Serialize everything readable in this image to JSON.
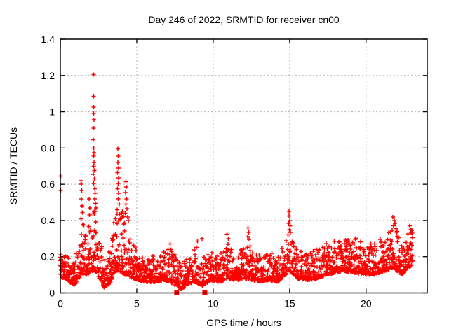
{
  "page": {
    "background": "#ffffff"
  },
  "chart_data": {
    "type": "scatter",
    "title": "Day 246 of 2022, SRMTID for receiver cn00",
    "xlabel": "GPS time / hours",
    "ylabel": "SRMTID / TECUs",
    "xlim": [
      0,
      24
    ],
    "ylim": [
      0,
      1.4
    ],
    "xticks": {
      "values": [
        0,
        5,
        10,
        15,
        20
      ],
      "labels": [
        "0",
        "5",
        "10",
        "15",
        "20"
      ]
    },
    "yticks": {
      "values": [
        0,
        0.2,
        0.4,
        0.6,
        0.8,
        1.0,
        1.2,
        1.4
      ],
      "labels": [
        "0",
        "0.2",
        "0.4",
        "0.6",
        "0.8",
        "1",
        "1.2",
        "1.4"
      ]
    },
    "grid": {
      "show": true,
      "color": "#b3b3b3",
      "dash": "2 3",
      "width": 1
    },
    "border_color": "#000000",
    "text_color": "#000000",
    "legend": "none",
    "marker": {
      "type": "plus",
      "half_size": 3,
      "stroke_width": 1.5,
      "color": "#ff0000"
    },
    "series": {
      "name": "SRMTID",
      "color": "#ff0000",
      "peak_points": [
        [
          0.02,
          0.645
        ],
        [
          0.02,
          0.565
        ],
        [
          1.36,
          0.62
        ],
        [
          1.38,
          0.6
        ],
        [
          1.4,
          0.565
        ],
        [
          1.37,
          0.52
        ],
        [
          1.42,
          0.48
        ],
        [
          1.44,
          0.445
        ],
        [
          1.35,
          0.41
        ],
        [
          1.88,
          0.52
        ],
        [
          1.92,
          0.47
        ],
        [
          1.9,
          0.43
        ],
        [
          2.17,
          1.205
        ],
        [
          2.18,
          1.085
        ],
        [
          2.19,
          1.025
        ],
        [
          2.17,
          0.99
        ],
        [
          2.2,
          0.955
        ],
        [
          2.18,
          0.91
        ],
        [
          2.16,
          0.845
        ],
        [
          2.19,
          0.8
        ],
        [
          2.21,
          0.775
        ],
        [
          2.17,
          0.755
        ],
        [
          2.2,
          0.72
        ],
        [
          2.18,
          0.7
        ],
        [
          2.22,
          0.675
        ],
        [
          2.16,
          0.655
        ],
        [
          2.23,
          0.63
        ],
        [
          2.19,
          0.605
        ],
        [
          2.25,
          0.575
        ],
        [
          2.28,
          0.55
        ],
        [
          2.24,
          0.52
        ],
        [
          2.3,
          0.495
        ],
        [
          2.33,
          0.47
        ],
        [
          2.27,
          0.45
        ],
        [
          3.77,
          0.795
        ],
        [
          3.79,
          0.755
        ],
        [
          3.76,
          0.72
        ],
        [
          3.8,
          0.69
        ],
        [
          3.74,
          0.665
        ],
        [
          3.81,
          0.635
        ],
        [
          3.78,
          0.605
        ],
        [
          3.75,
          0.575
        ],
        [
          3.82,
          0.55
        ],
        [
          3.79,
          0.52
        ],
        [
          3.85,
          0.49
        ],
        [
          3.72,
          0.46
        ],
        [
          3.88,
          0.435
        ],
        [
          3.92,
          0.41
        ],
        [
          4.05,
          0.45
        ],
        [
          4.07,
          0.42
        ],
        [
          4.28,
          0.615
        ],
        [
          4.31,
          0.585
        ],
        [
          4.26,
          0.555
        ],
        [
          4.33,
          0.52
        ],
        [
          4.29,
          0.49
        ],
        [
          4.36,
          0.465
        ],
        [
          4.24,
          0.44
        ],
        [
          4.4,
          0.42
        ],
        [
          4.45,
          0.4
        ],
        [
          7.18,
          0.27
        ],
        [
          8.98,
          0.285
        ],
        [
          9.28,
          0.3
        ],
        [
          10.9,
          0.325
        ],
        [
          11.0,
          0.3
        ],
        [
          12.28,
          0.36
        ],
        [
          12.32,
          0.335
        ],
        [
          12.25,
          0.31
        ],
        [
          12.35,
          0.295
        ],
        [
          14.95,
          0.45
        ],
        [
          14.97,
          0.425
        ],
        [
          15.0,
          0.4
        ],
        [
          14.93,
          0.385
        ],
        [
          15.02,
          0.37
        ],
        [
          14.98,
          0.35
        ],
        [
          15.05,
          0.335
        ],
        [
          14.9,
          0.32
        ],
        [
          21.75,
          0.42
        ],
        [
          21.85,
          0.4
        ],
        [
          21.9,
          0.385
        ],
        [
          21.8,
          0.37
        ],
        [
          21.95,
          0.355
        ],
        [
          22.0,
          0.34
        ],
        [
          21.7,
          0.345
        ],
        [
          22.85,
          0.37
        ],
        [
          22.92,
          0.35
        ],
        [
          22.95,
          0.335
        ],
        [
          23.0,
          0.345
        ],
        [
          23.02,
          0.33
        ]
      ],
      "baseline_profile": [
        [
          0.0,
          0.09,
          0.24
        ],
        [
          0.5,
          0.07,
          0.2
        ],
        [
          0.9,
          0.04,
          0.16
        ],
        [
          1.2,
          0.08,
          0.28
        ],
        [
          1.45,
          0.1,
          0.38
        ],
        [
          1.8,
          0.1,
          0.38
        ],
        [
          2.2,
          0.13,
          0.48
        ],
        [
          2.55,
          0.08,
          0.33
        ],
        [
          2.85,
          0.03,
          0.2
        ],
        [
          3.2,
          0.05,
          0.24
        ],
        [
          3.6,
          0.12,
          0.45
        ],
        [
          3.85,
          0.12,
          0.48
        ],
        [
          4.1,
          0.1,
          0.42
        ],
        [
          4.4,
          0.1,
          0.46
        ],
        [
          4.75,
          0.08,
          0.28
        ],
        [
          5.2,
          0.07,
          0.22
        ],
        [
          5.7,
          0.06,
          0.19
        ],
        [
          6.2,
          0.06,
          0.21
        ],
        [
          6.8,
          0.07,
          0.23
        ],
        [
          7.2,
          0.06,
          0.25
        ],
        [
          7.9,
          0.02,
          0.16
        ],
        [
          8.4,
          0.05,
          0.21
        ],
        [
          8.85,
          0.06,
          0.26
        ],
        [
          9.3,
          0.04,
          0.19
        ],
        [
          9.85,
          0.07,
          0.25
        ],
        [
          10.4,
          0.06,
          0.21
        ],
        [
          10.95,
          0.08,
          0.27
        ],
        [
          11.5,
          0.07,
          0.22
        ],
        [
          12.3,
          0.08,
          0.28
        ],
        [
          12.9,
          0.06,
          0.21
        ],
        [
          13.5,
          0.07,
          0.24
        ],
        [
          14.2,
          0.06,
          0.21
        ],
        [
          15.0,
          0.12,
          0.32
        ],
        [
          15.55,
          0.08,
          0.23
        ],
        [
          16.3,
          0.07,
          0.22
        ],
        [
          17.1,
          0.09,
          0.26
        ],
        [
          17.9,
          0.11,
          0.3
        ],
        [
          18.6,
          0.12,
          0.3
        ],
        [
          19.3,
          0.11,
          0.31
        ],
        [
          19.9,
          0.1,
          0.26
        ],
        [
          20.6,
          0.1,
          0.29
        ],
        [
          21.2,
          0.12,
          0.31
        ],
        [
          21.8,
          0.14,
          0.37
        ],
        [
          22.3,
          0.1,
          0.33
        ],
        [
          22.7,
          0.13,
          0.35
        ],
        [
          23.05,
          0.16,
          0.34
        ]
      ],
      "generator": {
        "seed": 20220246,
        "x_start": 0.0,
        "x_end": 23.05,
        "epoch_step": 0.02,
        "jitter": 0.03,
        "extra_point_prob": [
          0.5,
          0.2
        ],
        "shape": 2.2,
        "y_min": 0.005
      }
    },
    "axis_markers": {
      "type": "filled-square",
      "color": "#ff0000",
      "size": 7,
      "points": [
        [
          7.61,
          0
        ],
        [
          9.45,
          0
        ]
      ]
    }
  }
}
